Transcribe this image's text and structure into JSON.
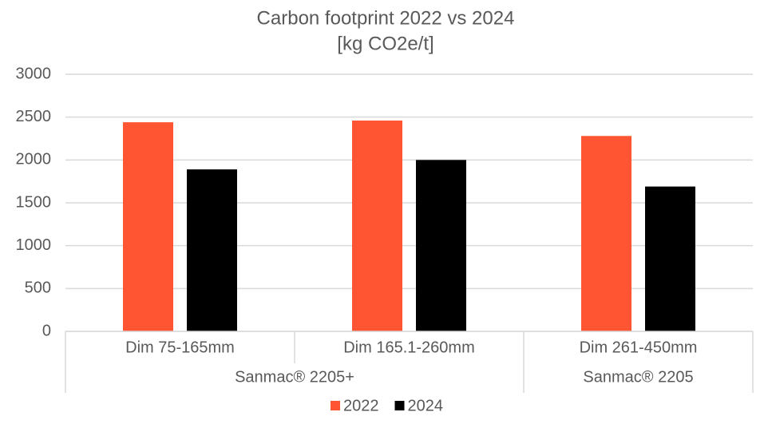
{
  "chart_data": {
    "type": "bar",
    "title": "Carbon footprint 2022 vs 2024",
    "subtitle": "[kg CO2e/t]",
    "categories": [
      "Dim 75-165mm",
      "Dim 165.1-260mm",
      "Dim 261-450mm"
    ],
    "category_groups": [
      "Sanmac® 2205+",
      "Sanmac® 2205+",
      "Sanmac® 2205"
    ],
    "series": [
      {
        "name": "2022",
        "color": "#ff5533",
        "values": [
          2440,
          2460,
          2280
        ]
      },
      {
        "name": "2024",
        "color": "#000000",
        "values": [
          1890,
          2000,
          1690
        ]
      }
    ],
    "ylim": [
      0,
      3000
    ],
    "yticks": [
      0,
      500,
      1000,
      1500,
      2000,
      2500,
      3000
    ],
    "grid": true,
    "legend": "bottom"
  }
}
